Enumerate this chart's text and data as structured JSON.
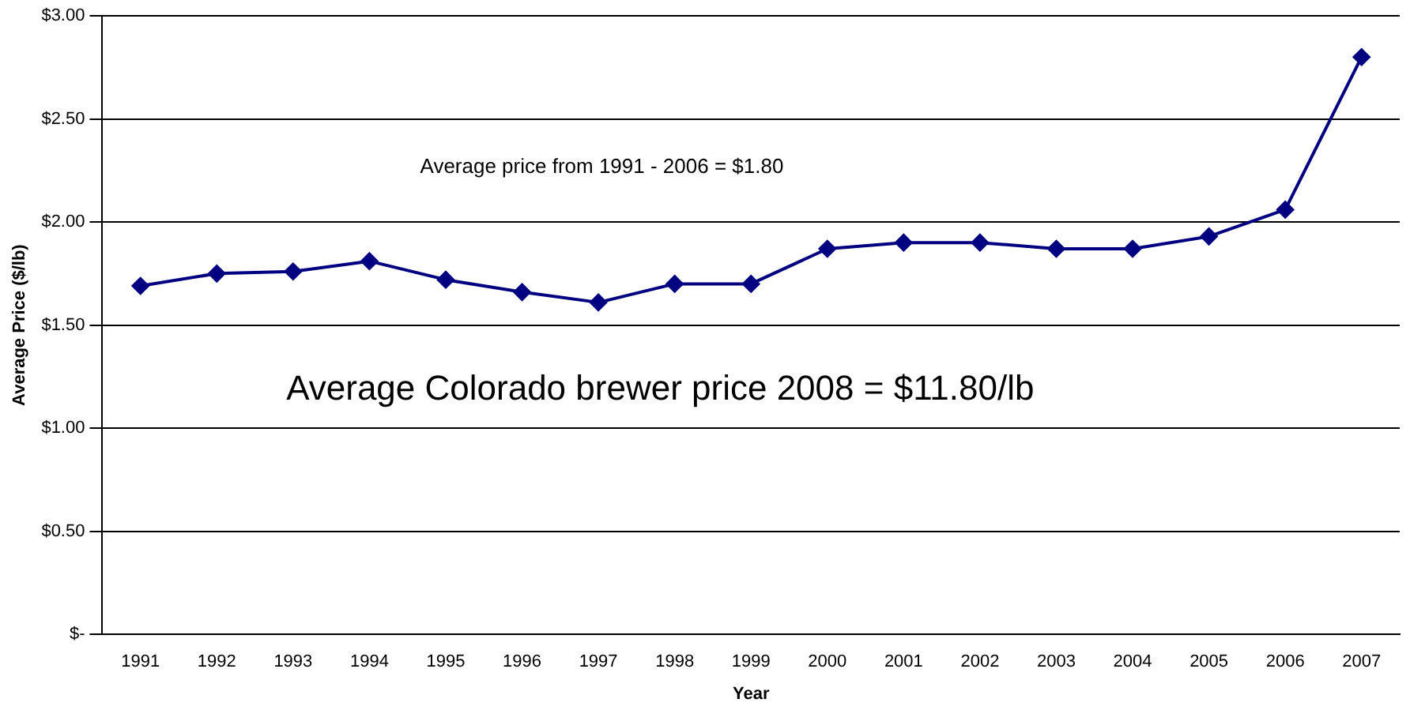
{
  "chart_data": {
    "type": "line",
    "xlabel": "Year",
    "ylabel": "Average Price ($/lb)",
    "categories": [
      "1991",
      "1992",
      "1993",
      "1994",
      "1995",
      "1996",
      "1997",
      "1998",
      "1999",
      "2000",
      "2001",
      "2002",
      "2003",
      "2004",
      "2005",
      "2006",
      "2007"
    ],
    "series": [
      {
        "color": "#000080",
        "values": [
          1.69,
          1.75,
          1.76,
          1.81,
          1.72,
          1.66,
          1.61,
          1.7,
          1.7,
          1.87,
          1.9,
          1.9,
          1.87,
          1.87,
          1.93,
          2.06,
          2.8
        ]
      }
    ],
    "ylim": [
      0,
      3
    ],
    "yticks": [
      {
        "value": 0,
        "label": "$-"
      },
      {
        "value": 0.5,
        "label": "$0.50"
      },
      {
        "value": 1,
        "label": "$1.00"
      },
      {
        "value": 1.5,
        "label": "$1.50"
      },
      {
        "value": 2,
        "label": "$2.00"
      },
      {
        "value": 2.5,
        "label": "$2.50"
      },
      {
        "value": 3,
        "label": "$3.00"
      }
    ],
    "grid": "y",
    "legend": false,
    "marker": "diamond",
    "line_style": "solid",
    "annotations": [
      "Average price from 1991 - 2006 = $1.80",
      "Average Colorado brewer price 2008 = $11.80/lb"
    ]
  }
}
